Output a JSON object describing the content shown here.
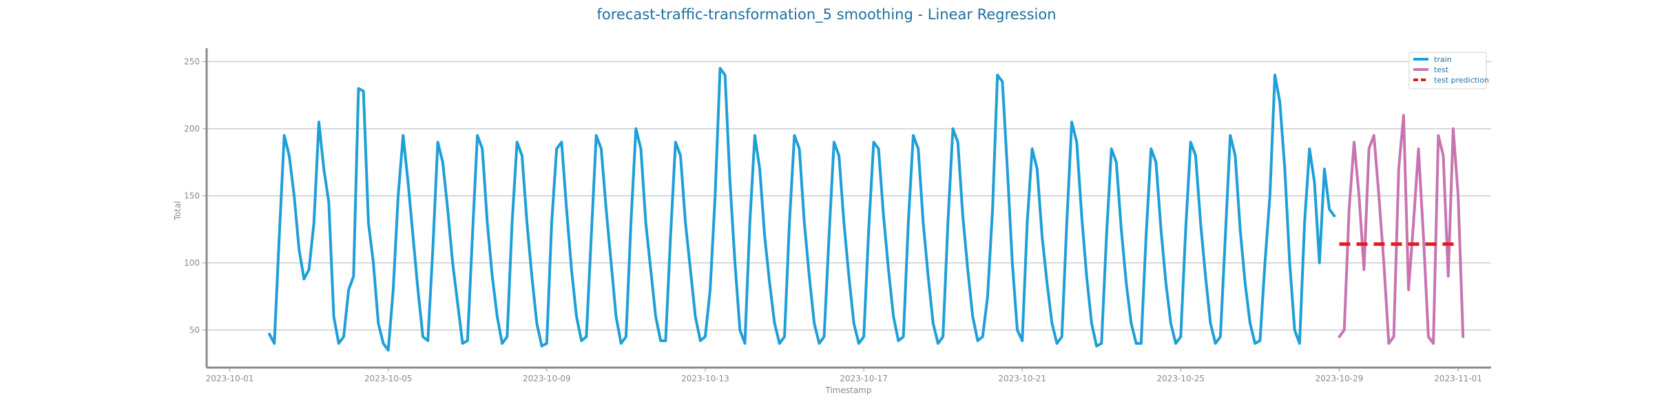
{
  "chart_data": {
    "type": "line",
    "title": "forecast-traffic-transformation_5 smoothing - Linear Regression",
    "xlabel": "Timestamp",
    "ylabel": "Total",
    "xlim": [
      "2023-09-30T10:00",
      "2023-11-01T20:00"
    ],
    "ylim": [
      22,
      260
    ],
    "x_ticks": [
      "2023-10-01",
      "2023-10-05",
      "2023-10-09",
      "2023-10-13",
      "2023-10-17",
      "2023-10-21",
      "2023-10-25",
      "2023-10-29",
      "2023-11-01"
    ],
    "y_ticks": [
      50,
      100,
      150,
      200,
      250
    ],
    "grid": "horizontal",
    "legend_position": "top-right",
    "series": [
      {
        "name": "train",
        "color": "#1f9fd8",
        "style": "solid",
        "points": [
          [
            "2023-10-02T00:00",
            47
          ],
          [
            "2023-10-02T03:00",
            40
          ],
          [
            "2023-10-02T06:00",
            120
          ],
          [
            "2023-10-02T09:00",
            195
          ],
          [
            "2023-10-02T12:00",
            180
          ],
          [
            "2023-10-02T15:00",
            150
          ],
          [
            "2023-10-02T18:00",
            110
          ],
          [
            "2023-10-02T21:00",
            88
          ],
          [
            "2023-10-03T00:00",
            95
          ],
          [
            "2023-10-03T03:00",
            130
          ],
          [
            "2023-10-03T06:00",
            205
          ],
          [
            "2023-10-03T09:00",
            170
          ],
          [
            "2023-10-03T12:00",
            145
          ],
          [
            "2023-10-03T15:00",
            60
          ],
          [
            "2023-10-03T18:00",
            40
          ],
          [
            "2023-10-03T21:00",
            45
          ],
          [
            "2023-10-04T00:00",
            80
          ],
          [
            "2023-10-04T03:00",
            90
          ],
          [
            "2023-10-04T06:00",
            230
          ],
          [
            "2023-10-04T09:00",
            228
          ],
          [
            "2023-10-04T12:00",
            130
          ],
          [
            "2023-10-04T15:00",
            100
          ],
          [
            "2023-10-04T18:00",
            55
          ],
          [
            "2023-10-04T21:00",
            40
          ],
          [
            "2023-10-05T00:00",
            35
          ],
          [
            "2023-10-05T03:00",
            80
          ],
          [
            "2023-10-05T06:00",
            150
          ],
          [
            "2023-10-05T09:00",
            195
          ],
          [
            "2023-10-05T12:00",
            160
          ],
          [
            "2023-10-05T15:00",
            120
          ],
          [
            "2023-10-05T18:00",
            80
          ],
          [
            "2023-10-05T21:00",
            45
          ],
          [
            "2023-10-06T00:00",
            42
          ],
          [
            "2023-10-06T03:00",
            110
          ],
          [
            "2023-10-06T06:00",
            190
          ],
          [
            "2023-10-06T09:00",
            175
          ],
          [
            "2023-10-06T12:00",
            140
          ],
          [
            "2023-10-06T15:00",
            100
          ],
          [
            "2023-10-06T18:00",
            70
          ],
          [
            "2023-10-06T21:00",
            40
          ],
          [
            "2023-10-07T00:00",
            42
          ],
          [
            "2023-10-07T03:00",
            120
          ],
          [
            "2023-10-07T06:00",
            195
          ],
          [
            "2023-10-07T09:00",
            185
          ],
          [
            "2023-10-07T12:00",
            130
          ],
          [
            "2023-10-07T15:00",
            90
          ],
          [
            "2023-10-07T18:00",
            60
          ],
          [
            "2023-10-07T21:00",
            40
          ],
          [
            "2023-10-08T00:00",
            45
          ],
          [
            "2023-10-08T03:00",
            130
          ],
          [
            "2023-10-08T06:00",
            190
          ],
          [
            "2023-10-08T09:00",
            180
          ],
          [
            "2023-10-08T12:00",
            130
          ],
          [
            "2023-10-08T15:00",
            90
          ],
          [
            "2023-10-08T18:00",
            55
          ],
          [
            "2023-10-08T21:00",
            38
          ],
          [
            "2023-10-09T00:00",
            40
          ],
          [
            "2023-10-09T03:00",
            130
          ],
          [
            "2023-10-09T06:00",
            185
          ],
          [
            "2023-10-09T09:00",
            190
          ],
          [
            "2023-10-09T12:00",
            140
          ],
          [
            "2023-10-09T15:00",
            95
          ],
          [
            "2023-10-09T18:00",
            60
          ],
          [
            "2023-10-09T21:00",
            42
          ],
          [
            "2023-10-10T00:00",
            45
          ],
          [
            "2023-10-10T03:00",
            120
          ],
          [
            "2023-10-10T06:00",
            195
          ],
          [
            "2023-10-10T09:00",
            185
          ],
          [
            "2023-10-10T12:00",
            140
          ],
          [
            "2023-10-10T15:00",
            100
          ],
          [
            "2023-10-10T18:00",
            60
          ],
          [
            "2023-10-10T21:00",
            40
          ],
          [
            "2023-10-11T00:00",
            45
          ],
          [
            "2023-10-11T03:00",
            130
          ],
          [
            "2023-10-11T06:00",
            200
          ],
          [
            "2023-10-11T09:00",
            185
          ],
          [
            "2023-10-11T12:00",
            130
          ],
          [
            "2023-10-11T15:00",
            95
          ],
          [
            "2023-10-11T18:00",
            60
          ],
          [
            "2023-10-11T21:00",
            42
          ],
          [
            "2023-10-12T00:00",
            42
          ],
          [
            "2023-10-12T03:00",
            120
          ],
          [
            "2023-10-12T06:00",
            190
          ],
          [
            "2023-10-12T09:00",
            180
          ],
          [
            "2023-10-12T12:00",
            130
          ],
          [
            "2023-10-12T15:00",
            95
          ],
          [
            "2023-10-12T18:00",
            60
          ],
          [
            "2023-10-12T21:00",
            42
          ],
          [
            "2023-10-13T00:00",
            45
          ],
          [
            "2023-10-13T03:00",
            80
          ],
          [
            "2023-10-13T06:00",
            150
          ],
          [
            "2023-10-13T09:00",
            245
          ],
          [
            "2023-10-13T12:00",
            240
          ],
          [
            "2023-10-13T15:00",
            160
          ],
          [
            "2023-10-13T18:00",
            100
          ],
          [
            "2023-10-13T21:00",
            50
          ],
          [
            "2023-10-14T00:00",
            40
          ],
          [
            "2023-10-14T03:00",
            130
          ],
          [
            "2023-10-14T06:00",
            195
          ],
          [
            "2023-10-14T09:00",
            170
          ],
          [
            "2023-10-14T12:00",
            120
          ],
          [
            "2023-10-14T15:00",
            85
          ],
          [
            "2023-10-14T18:00",
            55
          ],
          [
            "2023-10-14T21:00",
            40
          ],
          [
            "2023-10-15T00:00",
            45
          ],
          [
            "2023-10-15T03:00",
            130
          ],
          [
            "2023-10-15T06:00",
            195
          ],
          [
            "2023-10-15T09:00",
            185
          ],
          [
            "2023-10-15T12:00",
            130
          ],
          [
            "2023-10-15T15:00",
            90
          ],
          [
            "2023-10-15T18:00",
            55
          ],
          [
            "2023-10-15T21:00",
            40
          ],
          [
            "2023-10-16T00:00",
            45
          ],
          [
            "2023-10-16T03:00",
            120
          ],
          [
            "2023-10-16T06:00",
            190
          ],
          [
            "2023-10-16T09:00",
            180
          ],
          [
            "2023-10-16T12:00",
            130
          ],
          [
            "2023-10-16T15:00",
            90
          ],
          [
            "2023-10-16T18:00",
            55
          ],
          [
            "2023-10-16T21:00",
            40
          ],
          [
            "2023-10-17T00:00",
            45
          ],
          [
            "2023-10-17T03:00",
            125
          ],
          [
            "2023-10-17T06:00",
            190
          ],
          [
            "2023-10-17T09:00",
            185
          ],
          [
            "2023-10-17T12:00",
            135
          ],
          [
            "2023-10-17T15:00",
            95
          ],
          [
            "2023-10-17T18:00",
            60
          ],
          [
            "2023-10-17T21:00",
            42
          ],
          [
            "2023-10-18T00:00",
            45
          ],
          [
            "2023-10-18T03:00",
            130
          ],
          [
            "2023-10-18T06:00",
            195
          ],
          [
            "2023-10-18T09:00",
            185
          ],
          [
            "2023-10-18T12:00",
            130
          ],
          [
            "2023-10-18T15:00",
            90
          ],
          [
            "2023-10-18T18:00",
            55
          ],
          [
            "2023-10-18T21:00",
            40
          ],
          [
            "2023-10-19T00:00",
            45
          ],
          [
            "2023-10-19T03:00",
            130
          ],
          [
            "2023-10-19T06:00",
            200
          ],
          [
            "2023-10-19T09:00",
            190
          ],
          [
            "2023-10-19T12:00",
            135
          ],
          [
            "2023-10-19T15:00",
            95
          ],
          [
            "2023-10-19T18:00",
            60
          ],
          [
            "2023-10-19T21:00",
            42
          ],
          [
            "2023-10-20T00:00",
            45
          ],
          [
            "2023-10-20T03:00",
            75
          ],
          [
            "2023-10-20T06:00",
            140
          ],
          [
            "2023-10-20T09:00",
            240
          ],
          [
            "2023-10-20T12:00",
            235
          ],
          [
            "2023-10-20T15:00",
            170
          ],
          [
            "2023-10-20T18:00",
            100
          ],
          [
            "2023-10-20T21:00",
            50
          ],
          [
            "2023-10-21T00:00",
            42
          ],
          [
            "2023-10-21T03:00",
            130
          ],
          [
            "2023-10-21T06:00",
            185
          ],
          [
            "2023-10-21T09:00",
            170
          ],
          [
            "2023-10-21T12:00",
            120
          ],
          [
            "2023-10-21T15:00",
            85
          ],
          [
            "2023-10-21T18:00",
            55
          ],
          [
            "2023-10-21T21:00",
            40
          ],
          [
            "2023-10-22T00:00",
            45
          ],
          [
            "2023-10-22T03:00",
            130
          ],
          [
            "2023-10-22T06:00",
            205
          ],
          [
            "2023-10-22T09:00",
            190
          ],
          [
            "2023-10-22T12:00",
            135
          ],
          [
            "2023-10-22T15:00",
            90
          ],
          [
            "2023-10-22T18:00",
            55
          ],
          [
            "2023-10-22T21:00",
            38
          ],
          [
            "2023-10-23T00:00",
            40
          ],
          [
            "2023-10-23T03:00",
            120
          ],
          [
            "2023-10-23T06:00",
            185
          ],
          [
            "2023-10-23T09:00",
            175
          ],
          [
            "2023-10-23T12:00",
            125
          ],
          [
            "2023-10-23T15:00",
            85
          ],
          [
            "2023-10-23T18:00",
            55
          ],
          [
            "2023-10-23T21:00",
            40
          ],
          [
            "2023-10-24T00:00",
            40
          ],
          [
            "2023-10-24T03:00",
            120
          ],
          [
            "2023-10-24T06:00",
            185
          ],
          [
            "2023-10-24T09:00",
            175
          ],
          [
            "2023-10-24T12:00",
            125
          ],
          [
            "2023-10-24T15:00",
            85
          ],
          [
            "2023-10-24T18:00",
            55
          ],
          [
            "2023-10-24T21:00",
            40
          ],
          [
            "2023-10-25T00:00",
            45
          ],
          [
            "2023-10-25T03:00",
            125
          ],
          [
            "2023-10-25T06:00",
            190
          ],
          [
            "2023-10-25T09:00",
            180
          ],
          [
            "2023-10-25T12:00",
            130
          ],
          [
            "2023-10-25T15:00",
            90
          ],
          [
            "2023-10-25T18:00",
            55
          ],
          [
            "2023-10-25T21:00",
            40
          ],
          [
            "2023-10-26T00:00",
            45
          ],
          [
            "2023-10-26T03:00",
            120
          ],
          [
            "2023-10-26T06:00",
            195
          ],
          [
            "2023-10-26T09:00",
            180
          ],
          [
            "2023-10-26T12:00",
            125
          ],
          [
            "2023-10-26T15:00",
            85
          ],
          [
            "2023-10-26T18:00",
            55
          ],
          [
            "2023-10-26T21:00",
            40
          ],
          [
            "2023-10-27T00:00",
            42
          ],
          [
            "2023-10-27T03:00",
            100
          ],
          [
            "2023-10-27T06:00",
            150
          ],
          [
            "2023-10-27T09:00",
            240
          ],
          [
            "2023-10-27T12:00",
            220
          ],
          [
            "2023-10-27T15:00",
            170
          ],
          [
            "2023-10-27T18:00",
            100
          ],
          [
            "2023-10-27T21:00",
            50
          ],
          [
            "2023-10-28T00:00",
            40
          ],
          [
            "2023-10-28T03:00",
            130
          ],
          [
            "2023-10-28T06:00",
            185
          ],
          [
            "2023-10-28T09:00",
            160
          ],
          [
            "2023-10-28T12:00",
            100
          ],
          [
            "2023-10-28T15:00",
            170
          ],
          [
            "2023-10-28T18:00",
            140
          ],
          [
            "2023-10-28T21:00",
            135
          ]
        ]
      },
      {
        "name": "test",
        "color": "#c874b0",
        "style": "solid",
        "points": [
          [
            "2023-10-29T00:00",
            45
          ],
          [
            "2023-10-29T03:00",
            50
          ],
          [
            "2023-10-29T06:00",
            140
          ],
          [
            "2023-10-29T09:00",
            190
          ],
          [
            "2023-10-29T12:00",
            150
          ],
          [
            "2023-10-29T15:00",
            95
          ],
          [
            "2023-10-29T18:00",
            185
          ],
          [
            "2023-10-29T21:00",
            195
          ],
          [
            "2023-10-30T00:00",
            150
          ],
          [
            "2023-10-30T03:00",
            100
          ],
          [
            "2023-10-30T06:00",
            40
          ],
          [
            "2023-10-30T09:00",
            45
          ],
          [
            "2023-10-30T12:00",
            170
          ],
          [
            "2023-10-30T15:00",
            210
          ],
          [
            "2023-10-30T18:00",
            80
          ],
          [
            "2023-10-30T21:00",
            130
          ],
          [
            "2023-10-31T00:00",
            185
          ],
          [
            "2023-10-31T03:00",
            120
          ],
          [
            "2023-10-31T06:00",
            45
          ],
          [
            "2023-10-31T09:00",
            40
          ],
          [
            "2023-10-31T12:00",
            195
          ],
          [
            "2023-10-31T15:00",
            180
          ],
          [
            "2023-10-31T18:00",
            90
          ],
          [
            "2023-10-31T21:00",
            200
          ],
          [
            "2023-11-01T00:00",
            150
          ],
          [
            "2023-11-01T03:00",
            45
          ]
        ]
      },
      {
        "name": "test prediction",
        "color": "#e31a1c",
        "style": "dashed",
        "points": [
          [
            "2023-10-29T00:00",
            114
          ],
          [
            "2023-11-01T00:00",
            114
          ]
        ]
      }
    ]
  }
}
